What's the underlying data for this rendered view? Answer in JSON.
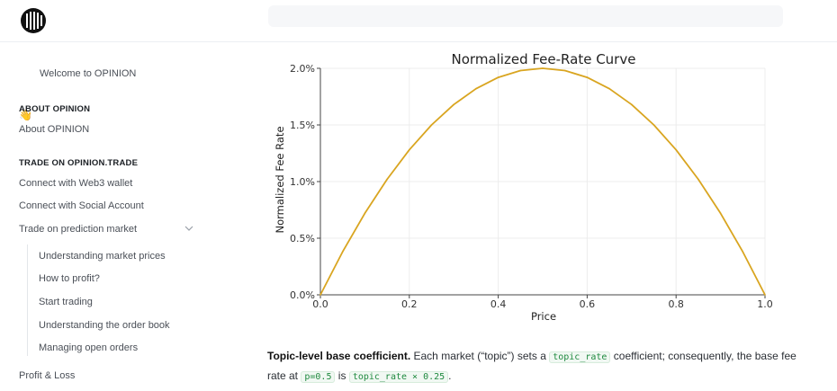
{
  "sidebar": {
    "welcome": "Welcome to OPINION",
    "welcome_emoji": "👋",
    "section_about": "ABOUT OPINION",
    "about": "About OPINION",
    "section_trade": "TRADE ON OPINION.TRADE",
    "connect_wallet": "Connect with Web3 wallet",
    "connect_social": "Connect with Social Account",
    "trade_prediction": "Trade on prediction market",
    "sub_items": [
      "Understanding market prices",
      "How to profit?",
      "Start trading",
      "Understanding the order book",
      "Managing open orders"
    ],
    "profit_loss": "Profit & Loss"
  },
  "paragraph": {
    "bold": "Topic-level base coefficient.",
    "text1": " Each market (“topic”) sets a ",
    "code1": "topic_rate",
    "text2": " coefficient; consequently, the base fee rate at ",
    "code2": "p=0.5",
    "text3": " is ",
    "code3": "topic_rate × 0.25",
    "text4": "."
  },
  "chart_data": {
    "type": "line",
    "title": "Normalized Fee-Rate Curve",
    "xlabel": "Price",
    "ylabel": "Normalized Fee Rate",
    "xlim": [
      0,
      1
    ],
    "ylim": [
      0,
      2.0
    ],
    "x_ticks": [
      "0.0",
      "0.2",
      "0.4",
      "0.6",
      "0.8",
      "1.0"
    ],
    "y_ticks": [
      "0.0%",
      "0.5%",
      "1.0%",
      "1.5%",
      "2.0%"
    ],
    "grid": true,
    "line_color": "#d9a520",
    "series": [
      {
        "x": [
          0,
          0.05,
          0.1,
          0.15,
          0.2,
          0.25,
          0.3,
          0.35,
          0.4,
          0.45,
          0.5,
          0.55,
          0.6,
          0.65,
          0.7,
          0.75,
          0.8,
          0.85,
          0.9,
          0.95,
          1.0
        ],
        "values": [
          0,
          0.38,
          0.72,
          1.02,
          1.28,
          1.5,
          1.68,
          1.82,
          1.92,
          1.98,
          2.0,
          1.98,
          1.92,
          1.82,
          1.68,
          1.5,
          1.28,
          1.02,
          0.72,
          0.38,
          0
        ]
      }
    ]
  }
}
